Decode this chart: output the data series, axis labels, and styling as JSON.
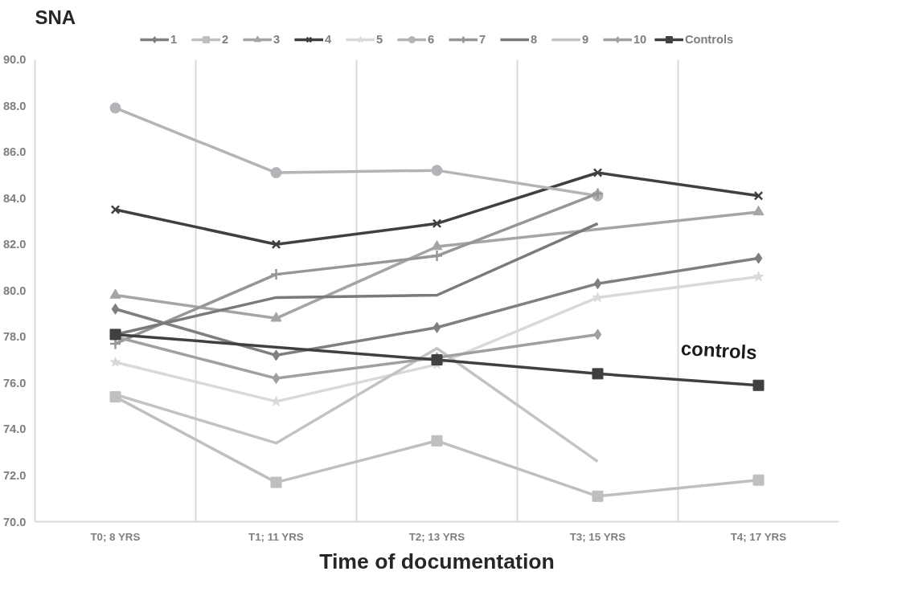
{
  "chart_data": {
    "type": "line",
    "title": "SNA",
    "xlabel": "Time of documentation",
    "categories": [
      "T0; 8 YRS",
      "T1; 11 YRS",
      "T2; 13 YRS",
      "T3; 15 YRS",
      "T4; 17 YRS"
    ],
    "ylim": [
      70,
      90
    ],
    "yticks": [
      {
        "value": 70,
        "label": "70.0"
      },
      {
        "value": 72,
        "label": "72.0"
      },
      {
        "value": 74,
        "label": "74.0"
      },
      {
        "value": 76,
        "label": "76.0"
      },
      {
        "value": 78,
        "label": "78.0"
      },
      {
        "value": 80,
        "label": "80.0"
      },
      {
        "value": 82,
        "label": "82.0"
      },
      {
        "value": 84,
        "label": "84.0"
      },
      {
        "value": 86,
        "label": "86.0"
      },
      {
        "value": 88,
        "label": "88.0"
      },
      {
        "value": 90,
        "label": "90.0"
      }
    ],
    "grid": "x",
    "legend": "top",
    "series": [
      {
        "name": "1",
        "color": "#7f7f7f",
        "marker": "diamond",
        "values": [
          79.2,
          77.2,
          78.4,
          80.3,
          81.4
        ]
      },
      {
        "name": "2",
        "color": "#bfbfbf",
        "marker": "square",
        "values": [
          75.4,
          71.7,
          73.5,
          71.1,
          71.8
        ]
      },
      {
        "name": "3",
        "color": "#a5a5a5",
        "marker": "triangle",
        "values": [
          79.8,
          78.8,
          81.9,
          null,
          83.4
        ]
      },
      {
        "name": "4",
        "color": "#404040",
        "marker": "x",
        "values": [
          83.5,
          82.0,
          82.9,
          85.1,
          84.1
        ]
      },
      {
        "name": "5",
        "color": "#d9d9d9",
        "marker": "star",
        "values": [
          76.9,
          75.2,
          76.8,
          79.7,
          80.6
        ]
      },
      {
        "name": "6",
        "color": "#b4b4b8",
        "marker": "circle",
        "values": [
          87.9,
          85.1,
          85.2,
          84.1,
          null
        ]
      },
      {
        "name": "7",
        "color": "#969696",
        "marker": "cross",
        "values": [
          77.7,
          80.7,
          81.5,
          84.2,
          null
        ]
      },
      {
        "name": "8",
        "color": "#7a7a7a",
        "marker": "none",
        "values": [
          78.1,
          79.7,
          79.8,
          82.9,
          null
        ]
      },
      {
        "name": "9",
        "color": "#c3c3c6",
        "marker": "none",
        "values": [
          75.5,
          73.4,
          77.5,
          72.6,
          null
        ]
      },
      {
        "name": "10",
        "color": "#a0a0a0",
        "marker": "diamond",
        "values": [
          78.0,
          76.2,
          77.1,
          78.1,
          null
        ]
      },
      {
        "name": "Controls",
        "color": "#404040",
        "marker": "square",
        "values": [
          78.1,
          null,
          77.0,
          76.4,
          75.9
        ]
      }
    ],
    "annotations": [
      "controls"
    ]
  }
}
